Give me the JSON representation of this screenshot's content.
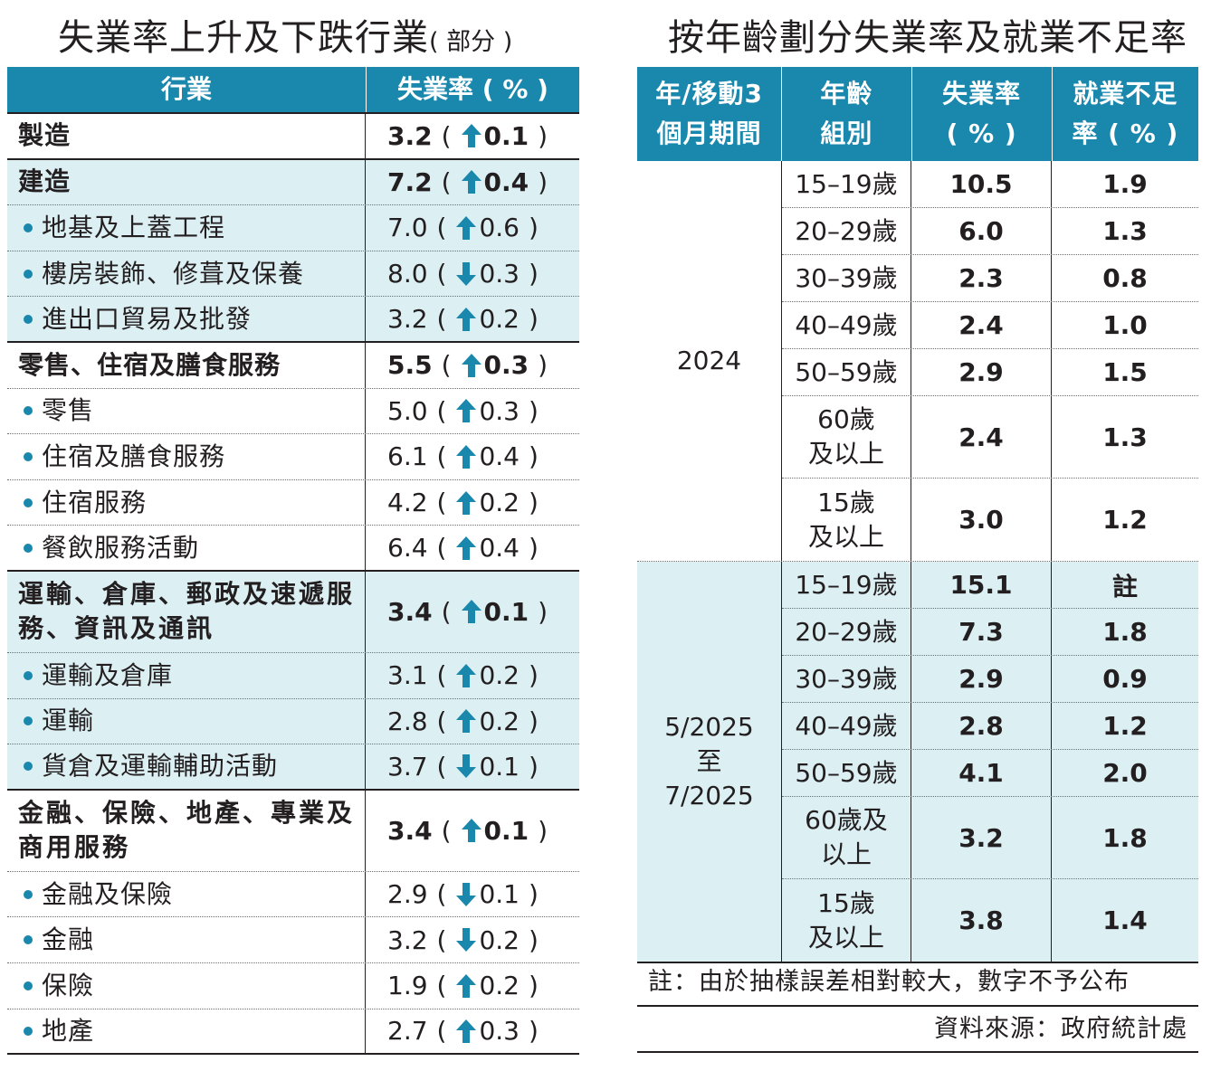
{
  "left": {
    "title": "失業率上升及下跌行業",
    "title_sub": "( 部分 )",
    "header": {
      "industry": "行業",
      "rate": "失業率 ( % )"
    },
    "rows": [
      {
        "name": "製造",
        "rate": "3.2",
        "dir": "up",
        "change": "0.1",
        "bold": true,
        "tint": false,
        "sub": false
      },
      {
        "name": "建造",
        "rate": "7.2",
        "dir": "up",
        "change": "0.4",
        "bold": true,
        "tint": true,
        "sub": false
      },
      {
        "name": "地基及上蓋工程",
        "rate": "7.0",
        "dir": "up",
        "change": "0.6",
        "bold": false,
        "tint": true,
        "sub": true
      },
      {
        "name": "樓房裝飾、修葺及保養",
        "rate": "8.0",
        "dir": "down",
        "change": "0.3",
        "bold": false,
        "tint": true,
        "sub": true
      },
      {
        "name": "進出口貿易及批發",
        "rate": "3.2",
        "dir": "up",
        "change": "0.2",
        "bold": false,
        "tint": true,
        "sub": true
      },
      {
        "name": "零售、住宿及膳食服務",
        "rate": "5.5",
        "dir": "up",
        "change": "0.3",
        "bold": true,
        "tint": false,
        "sub": false
      },
      {
        "name": "零售",
        "rate": "5.0",
        "dir": "up",
        "change": "0.3",
        "bold": false,
        "tint": false,
        "sub": true
      },
      {
        "name": "住宿及膳食服務",
        "rate": "6.1",
        "dir": "up",
        "change": "0.4",
        "bold": false,
        "tint": false,
        "sub": true
      },
      {
        "name": "住宿服務",
        "rate": "4.2",
        "dir": "up",
        "change": "0.2",
        "bold": false,
        "tint": false,
        "sub": true
      },
      {
        "name": "餐飲服務活動",
        "rate": "6.4",
        "dir": "up",
        "change": "0.4",
        "bold": false,
        "tint": false,
        "sub": true
      },
      {
        "name": "運輸、倉庫、郵政及速遞服務、資訊及通訊",
        "rate": "3.4",
        "dir": "up",
        "change": "0.1",
        "bold": true,
        "tint": true,
        "sub": false
      },
      {
        "name": "運輸及倉庫",
        "rate": "3.1",
        "dir": "up",
        "change": "0.2",
        "bold": false,
        "tint": true,
        "sub": true
      },
      {
        "name": "運輸",
        "rate": "2.8",
        "dir": "up",
        "change": "0.2",
        "bold": false,
        "tint": true,
        "sub": true
      },
      {
        "name": "貨倉及運輸輔助活動",
        "rate": "3.7",
        "dir": "down",
        "change": "0.1",
        "bold": false,
        "tint": true,
        "sub": true
      },
      {
        "name": "金融、保險、地產、專業及商用服務",
        "rate": "3.4",
        "dir": "up",
        "change": "0.1",
        "bold": true,
        "tint": false,
        "sub": false
      },
      {
        "name": "金融及保險",
        "rate": "2.9",
        "dir": "down",
        "change": "0.1",
        "bold": false,
        "tint": false,
        "sub": true
      },
      {
        "name": "金融",
        "rate": "3.2",
        "dir": "down",
        "change": "0.2",
        "bold": false,
        "tint": false,
        "sub": true
      },
      {
        "name": "保險",
        "rate": "1.9",
        "dir": "up",
        "change": "0.2",
        "bold": false,
        "tint": false,
        "sub": true
      },
      {
        "name": "地產",
        "rate": "2.7",
        "dir": "up",
        "change": "0.3",
        "bold": false,
        "tint": false,
        "sub": true
      }
    ]
  },
  "right": {
    "title": "按年齡劃分失業率及就業不足率",
    "header": {
      "period_line1": "年/移動3",
      "period_line2": "個月期間",
      "age_line1": "年齡",
      "age_line2": "組別",
      "ur_line1": "失業率",
      "ur_line2": "( % )",
      "ud_line1": "就業不足",
      "ud_line2": "率 ( % )"
    },
    "blocks": [
      {
        "period": "2024",
        "rows": [
          {
            "age": "15–19歲",
            "ur": "10.5",
            "ud": "1.9"
          },
          {
            "age": "20–29歲",
            "ur": "6.0",
            "ud": "1.3"
          },
          {
            "age": "30–39歲",
            "ur": "2.3",
            "ud": "0.8"
          },
          {
            "age": "40–49歲",
            "ur": "2.4",
            "ud": "1.0"
          },
          {
            "age": "50–59歲",
            "ur": "2.9",
            "ud": "1.5"
          },
          {
            "age_line1": "60歲",
            "age_line2": "及以上",
            "ur": "2.4",
            "ud": "1.3"
          },
          {
            "age_line1": "15歲",
            "age_line2": "及以上",
            "ur": "3.0",
            "ud": "1.2"
          }
        ]
      },
      {
        "period_line1": "5/2025",
        "period_line2": "至",
        "period_line3": "7/2025",
        "rows": [
          {
            "age": "15–19歲",
            "ur": "15.1",
            "ud": "註"
          },
          {
            "age": "20–29歲",
            "ur": "7.3",
            "ud": "1.8"
          },
          {
            "age": "30–39歲",
            "ur": "2.9",
            "ud": "0.9"
          },
          {
            "age": "40–49歲",
            "ur": "2.8",
            "ud": "1.2"
          },
          {
            "age": "50–59歲",
            "ur": "4.1",
            "ud": "2.0"
          },
          {
            "age_line1": "60歲及",
            "age_line2": "以上",
            "ur": "3.2",
            "ud": "1.8"
          },
          {
            "age_line1": "15歲",
            "age_line2": "及以上",
            "ur": "3.8",
            "ud": "1.4"
          }
        ]
      }
    ],
    "note": "註：由於抽樣誤差相對較大，數字不予公布",
    "source": "資料來源：政府統計處"
  },
  "colors": {
    "header": "#1a87ad",
    "tint": "#dceff3",
    "arrow": "#1a87ad",
    "text": "#231f20"
  }
}
